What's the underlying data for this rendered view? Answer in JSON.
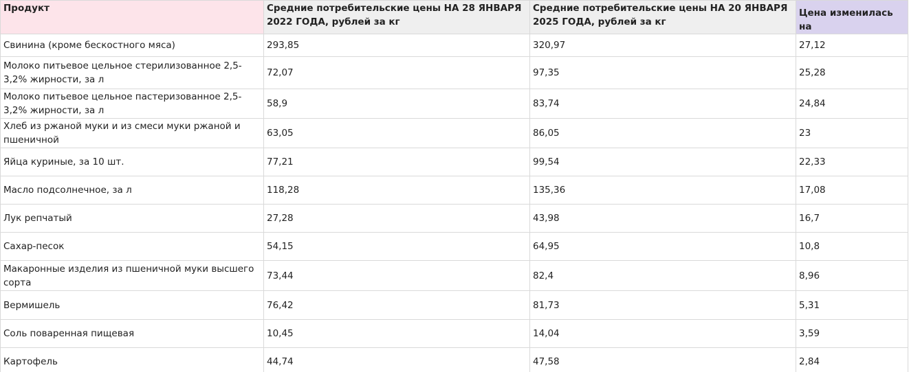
{
  "table": {
    "header": [
      "Продукт",
      "Средние потребительские цены НА 28 ЯНВАРЯ 2022 ГОДА, рублей за кг",
      "Средние потребительские цены НА 20 ЯНВАРЯ 2025 ГОДА, рублей за кг",
      "Цена изменилась на"
    ],
    "rows": [
      [
        "Свинина (кроме бескостного мяса)",
        "293,85",
        "320,97",
        "27,12"
      ],
      [
        "Молоко питьевое цельное стерилизованное 2,5-3,2% жирности, за л",
        "72,07",
        "97,35",
        "25,28"
      ],
      [
        "Молоко питьевое цельное пастеризованное 2,5-3,2% жирности, за л",
        "58,9",
        "83,74",
        "24,84"
      ],
      [
        "Хлеб из ржаной муки и из смеси муки ржаной и пшеничной",
        "63,05",
        "86,05",
        "23"
      ],
      [
        "Яйца куриные, за 10 шт.",
        "77,21",
        "99,54",
        "22,33"
      ],
      [
        "Масло подсолнечное, за л",
        "118,28",
        "135,36",
        "17,08"
      ],
      [
        "Лук репчатый",
        "27,28",
        "43,98",
        "16,7"
      ],
      [
        "Сахар-песок",
        "54,15",
        "64,95",
        "10,8"
      ],
      [
        "Макаронные изделия из пшеничной муки высшего сорта",
        "73,44",
        "82,4",
        "8,96"
      ],
      [
        "Вермишель",
        "76,42",
        "81,73",
        "5,31"
      ],
      [
        "Соль поваренная пищевая",
        "10,45",
        "14,04",
        "3,59"
      ],
      [
        "Картофель",
        "44,74",
        "47,58",
        "2,84"
      ]
    ]
  }
}
